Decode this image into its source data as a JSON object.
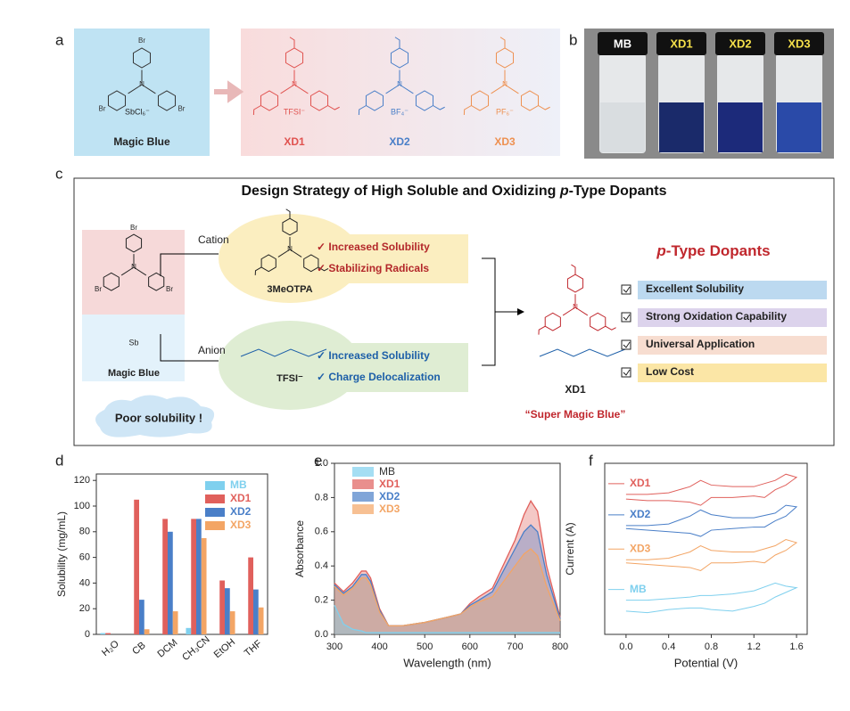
{
  "panels": {
    "a": {
      "label": "a",
      "magic_blue": {
        "name": "Magic Blue",
        "anion": "SbCl₆⁻",
        "substituent": "Br"
      },
      "dopants": [
        {
          "name": "XD1",
          "anion": "TFSI⁻",
          "color": "#e0524f"
        },
        {
          "name": "XD2",
          "anion": "BF₄⁻",
          "color": "#4a7fc8"
        },
        {
          "name": "XD3",
          "anion": "PF₆⁻",
          "color": "#ee9050"
        }
      ]
    },
    "b": {
      "label": "b",
      "vials": [
        "MB",
        "XD1",
        "XD2",
        "XD3"
      ]
    },
    "c": {
      "label": "c",
      "title_pre": "Design Strategy of High Soluble and Oxidizing ",
      "title_italic": "p",
      "title_post": "-Type Dopants",
      "cation": "Cation",
      "anion": "Anion",
      "cation_name": "3MeOTPA",
      "anion_name": "TFSI⁻",
      "source": "Magic Blue",
      "poor": "Poor solubility !",
      "cation_props": [
        "✓ Increased Solubility",
        "✓ Stabilizing Radicals"
      ],
      "anion_props": [
        "✓ Increased Solubility",
        "✓ Charge Delocalization"
      ],
      "product": "XD1",
      "nickname": "“Super Magic Blue”",
      "heading_italic": "p",
      "heading_post": "-Type Dopants",
      "features": [
        "Excellent Solubility",
        "Strong Oxidation Capability",
        "Universal Application",
        "Low Cost"
      ]
    },
    "d": {
      "label": "d"
    },
    "e": {
      "label": "e"
    },
    "f": {
      "label": "f"
    }
  },
  "chart_data": [
    {
      "type": "bar",
      "ylabel": "Solubility (mg/mL)",
      "categories": [
        "H₂O",
        "CB",
        "DCM",
        "CH₃CN",
        "EtOH",
        "THF"
      ],
      "series": [
        {
          "name": "MB",
          "color": "#7fd0ee",
          "values": [
            1,
            0,
            0,
            5,
            0,
            0
          ]
        },
        {
          "name": "XD1",
          "color": "#e0605c",
          "values": [
            1,
            105,
            90,
            90,
            42,
            60
          ]
        },
        {
          "name": "XD2",
          "color": "#4a7fc8",
          "values": [
            0,
            27,
            80,
            90,
            36,
            35
          ]
        },
        {
          "name": "XD3",
          "color": "#f3a565",
          "values": [
            0,
            4,
            18,
            75,
            18,
            21
          ]
        }
      ],
      "ylim": [
        0,
        125
      ],
      "yticks": [
        0,
        20,
        40,
        60,
        80,
        100,
        120
      ]
    },
    {
      "type": "area",
      "xlabel": "Wavelength (nm)",
      "ylabel": "Absorbance",
      "x": [
        300,
        320,
        340,
        360,
        370,
        380,
        400,
        420,
        450,
        500,
        550,
        580,
        600,
        620,
        650,
        700,
        720,
        735,
        750,
        770,
        800
      ],
      "series": [
        {
          "name": "XD1",
          "color": "#e0605c",
          "values": [
            0.3,
            0.25,
            0.3,
            0.37,
            0.37,
            0.33,
            0.15,
            0.05,
            0.05,
            0.07,
            0.1,
            0.12,
            0.18,
            0.22,
            0.27,
            0.55,
            0.7,
            0.78,
            0.72,
            0.4,
            0.1
          ]
        },
        {
          "name": "XD2",
          "color": "#4a7fc8",
          "values": [
            0.29,
            0.24,
            0.28,
            0.35,
            0.35,
            0.31,
            0.14,
            0.05,
            0.05,
            0.07,
            0.1,
            0.12,
            0.17,
            0.2,
            0.25,
            0.5,
            0.6,
            0.64,
            0.6,
            0.35,
            0.09
          ]
        },
        {
          "name": "XD3",
          "color": "#f3a565",
          "values": [
            0.28,
            0.23,
            0.27,
            0.33,
            0.33,
            0.29,
            0.13,
            0.05,
            0.05,
            0.07,
            0.1,
            0.12,
            0.16,
            0.19,
            0.22,
            0.4,
            0.47,
            0.5,
            0.46,
            0.28,
            0.08
          ]
        },
        {
          "name": "MB",
          "color": "#7fd0ee",
          "values": [
            0.17,
            0.06,
            0.03,
            0.02,
            0.01,
            0.01,
            0.01,
            0.01,
            0.01,
            0.01,
            0.01,
            0.01,
            0.01,
            0.01,
            0.01,
            0.01,
            0.01,
            0.01,
            0.01,
            0.01,
            0.01
          ]
        }
      ],
      "xlim": [
        300,
        800
      ],
      "ylim": [
        0,
        1
      ],
      "xticks": [
        300,
        400,
        500,
        600,
        700,
        800
      ],
      "yticks": [
        {
          "value": 0,
          "label": "0.0"
        },
        {
          "value": 0.2,
          "label": "0.2"
        },
        {
          "value": 0.4,
          "label": "0.4"
        },
        {
          "value": 0.6,
          "label": "0.6"
        },
        {
          "value": 0.8,
          "label": "0.8"
        },
        {
          "value": 1,
          "label": "1.0"
        }
      ]
    },
    {
      "type": "line",
      "xlabel": "Potential (V)",
      "ylabel": "Current (A)",
      "x": [
        0,
        0.2,
        0.4,
        0.6,
        0.7,
        0.8,
        1.0,
        1.2,
        1.4,
        1.5,
        1.6,
        1.5,
        1.4,
        1.3,
        1.2,
        1.0,
        0.8,
        0.7,
        0.6,
        0.4,
        0.2,
        0
      ],
      "series": [
        {
          "name": "XD1",
          "color": "#e0605c",
          "values": [
            9.0,
            9.0,
            9.1,
            9.5,
            9.9,
            9.6,
            9.5,
            9.5,
            9.9,
            10.3,
            10.1,
            9.6,
            9.3,
            8.8,
            8.9,
            8.8,
            8.8,
            8.3,
            8.5,
            8.6,
            8.6,
            8.7
          ]
        },
        {
          "name": "XD2",
          "color": "#4a7fc8",
          "values": [
            7.0,
            7.0,
            7.1,
            7.6,
            8.0,
            7.7,
            7.5,
            7.5,
            7.8,
            8.3,
            8.2,
            7.6,
            7.3,
            6.9,
            6.9,
            6.8,
            6.7,
            6.3,
            6.5,
            6.6,
            6.7,
            6.8
          ]
        },
        {
          "name": "XD3",
          "color": "#f3a565",
          "values": [
            4.8,
            4.8,
            4.9,
            5.3,
            5.7,
            5.4,
            5.3,
            5.3,
            5.7,
            6.1,
            5.9,
            5.4,
            5.1,
            4.6,
            4.7,
            4.6,
            4.6,
            4.1,
            4.3,
            4.4,
            4.5,
            4.6
          ]
        },
        {
          "name": "MB",
          "color": "#7fd0ee",
          "values": [
            2.2,
            2.2,
            2.3,
            2.4,
            2.5,
            2.5,
            2.6,
            2.8,
            3.3,
            3.1,
            3.0,
            2.7,
            2.4,
            2.0,
            1.8,
            1.5,
            1.6,
            1.7,
            1.7,
            1.6,
            1.4,
            1.5
          ]
        }
      ],
      "xlim": [
        -0.2,
        1.7
      ],
      "ylim": [
        0,
        11
      ],
      "xticks": [
        {
          "value": 0,
          "label": "0.0"
        },
        {
          "value": 0.4,
          "label": "0.4"
        },
        {
          "value": 0.8,
          "label": "0.8"
        },
        {
          "value": 1.2,
          "label": "1.2"
        },
        {
          "value": 1.6,
          "label": "1.6"
        }
      ]
    }
  ]
}
